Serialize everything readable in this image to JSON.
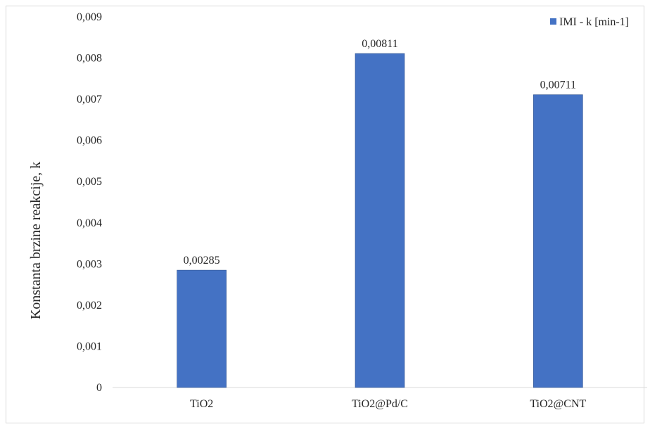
{
  "chart_data": {
    "type": "bar",
    "categories": [
      "TiO2",
      "TiO2@Pd/C",
      "TiO2@CNT"
    ],
    "series": [
      {
        "name": "IMI - k [min-1]",
        "values": [
          0.00285,
          0.00811,
          0.00711
        ],
        "color": "#4472c4"
      }
    ],
    "data_labels": [
      "0,00285",
      "0,00811",
      "0,00711"
    ],
    "title": "",
    "xlabel": "",
    "ylabel": "Konstanta brzine reakcije, k",
    "ylim": [
      0,
      0.009
    ],
    "yticks": [
      0,
      0.001,
      0.002,
      0.003,
      0.004,
      0.005,
      0.006,
      0.007,
      0.008,
      0.009
    ],
    "ytick_labels": [
      "0",
      "0,001",
      "0,002",
      "0,003",
      "0,004",
      "0,005",
      "0,006",
      "0,007",
      "0,008",
      "0,009"
    ],
    "grid": false,
    "legend_position": "top-right"
  }
}
